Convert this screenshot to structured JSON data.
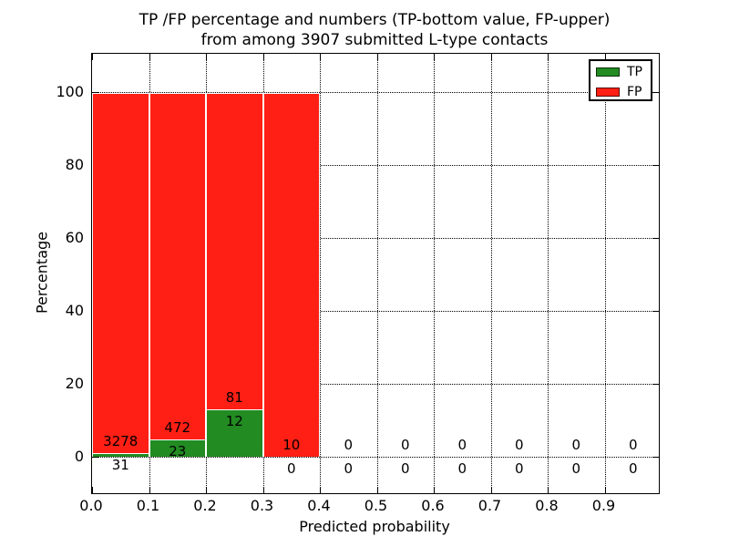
{
  "title": {
    "line1": "TP /FP percentage and numbers (TP-bottom value, FP-upper)",
    "line2": "from among 3907 submitted L-type contacts"
  },
  "axes": {
    "ylabel": "Percentage",
    "xlabel": "Predicted probability",
    "ytick_labels": [
      "0",
      "20",
      "40",
      "60",
      "80",
      "100"
    ],
    "ytick_values": [
      0,
      20,
      40,
      60,
      80,
      100
    ],
    "xtick_labels": [
      "0.0",
      "0.1",
      "0.2",
      "0.3",
      "0.4",
      "0.5",
      "0.6",
      "0.7",
      "0.8",
      "0.9"
    ],
    "xtick_values": [
      0.0,
      0.1,
      0.2,
      0.3,
      0.4,
      0.5,
      0.6,
      0.7,
      0.8,
      0.9
    ]
  },
  "legend": {
    "entries": [
      {
        "label": "TP",
        "color": "#228B22"
      },
      {
        "label": "FP",
        "color": "#FF1F14"
      }
    ],
    "position": "upper right"
  },
  "chart_data": {
    "type": "bar",
    "stacked": true,
    "title": "TP /FP percentage and numbers (TP-bottom value, FP-upper) from among 3907 submitted L-type contacts",
    "xlabel": "Predicted probability",
    "ylabel": "Percentage",
    "xlim": [
      0.0,
      1.0
    ],
    "ylim": [
      -10,
      110.5
    ],
    "grid": "dotted",
    "legend_position": "upper right",
    "total_contacts": 3907,
    "bin_width": 0.1,
    "bin_starts": [
      0.0,
      0.1,
      0.2,
      0.3,
      0.4,
      0.5,
      0.6,
      0.7,
      0.8,
      0.9
    ],
    "categories": [
      "0.0-0.1",
      "0.1-0.2",
      "0.2-0.3",
      "0.3-0.4",
      "0.4-0.5",
      "0.5-0.6",
      "0.6-0.7",
      "0.7-0.8",
      "0.8-0.9",
      "0.9-1.0"
    ],
    "series": [
      {
        "name": "TP",
        "color": "#228B22",
        "counts": [
          31,
          23,
          12,
          0,
          0,
          0,
          0,
          0,
          0,
          0
        ],
        "percent": [
          0.94,
          4.65,
          12.9,
          0,
          0,
          0,
          0,
          0,
          0,
          0
        ]
      },
      {
        "name": "FP",
        "color": "#FF1F14",
        "counts": [
          3278,
          472,
          81,
          10,
          0,
          0,
          0,
          0,
          0,
          0
        ],
        "percent": [
          99.06,
          95.35,
          87.1,
          100,
          0,
          0,
          0,
          0,
          0,
          0
        ]
      }
    ],
    "annotation_rule": "FP count drawn above TP bar top, TP count drawn below TP bar top"
  }
}
